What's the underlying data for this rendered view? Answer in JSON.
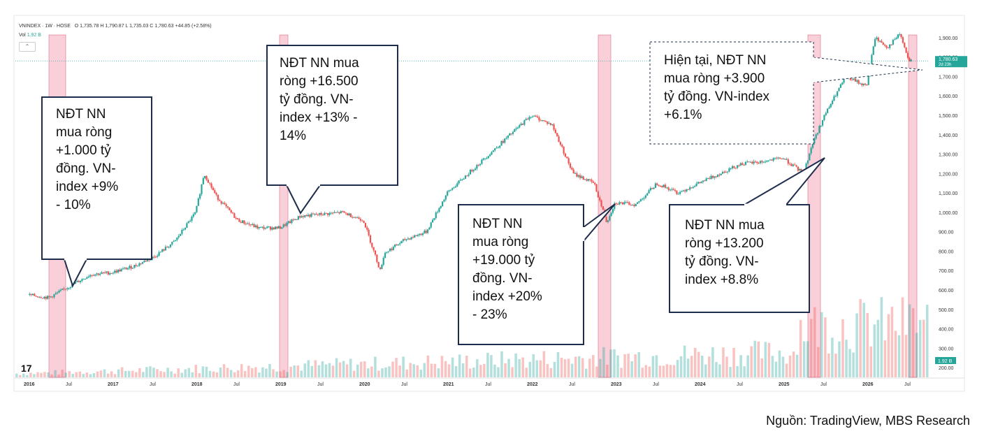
{
  "header": {
    "symbol": "VNINDEX · 1W · HOSE",
    "ohlc": "O 1,735.78  H 1,790.87  L 1,735.03  C 1,780.63  +44.85 (+2.58%)",
    "vol_label": "Vol",
    "vol_value": "1.92 B"
  },
  "source": "Nguồn: TradingView, MBS Research",
  "colors": {
    "up": "#26a69a",
    "down": "#ef5350",
    "highlight": "#f4a7b9",
    "callout_border": "#1f2d4d"
  },
  "callouts": [
    {
      "text": "NĐT NN\nmua ròng\n+1.000 tỷ\nđồng. VN-\nindex +9%\n- 10%"
    },
    {
      "text": "NĐT NN mua\nròng +16.500\ntỷ đồng. VN-\nindex +13% -\n14%"
    },
    {
      "text": "NĐT NN\nmua ròng\n+19.000 tỷ\nđồng. VN-\nindex +20%\n- 23%"
    },
    {
      "text": "NĐT NN mua\nròng +13.200\ntỷ đồng. VN-\nindex +8.8%"
    },
    {
      "text": "Hiện tại, NĐT NN\nmua ròng +3.900\ntỷ đồng. VN-index\n+6.1%"
    }
  ],
  "chart_data": {
    "type": "line",
    "title": "VNINDEX · 1W · HOSE",
    "x_tick_labels": [
      "2016",
      "Jul",
      "2017",
      "Jul",
      "2018",
      "Jul",
      "2019",
      "Jul",
      "2020",
      "Jul",
      "2021",
      "Jul",
      "2022",
      "Jul",
      "2023",
      "Jul",
      "2024",
      "Jul",
      "2025",
      "Jul",
      "2026",
      "Jul"
    ],
    "y_tick_labels": [
      "1,900.00",
      "1,800.00",
      "1,700.00",
      "1,600.00",
      "1,500.00",
      "1,400.00",
      "1,300.00",
      "1,200.00",
      "1,100.00",
      "1,000.00",
      "900.00",
      "800.00",
      "700.00",
      "600.00",
      "500.00",
      "400.00",
      "300.00",
      "200.00"
    ],
    "ylim": [
      150,
      1950
    ],
    "last_price_label": "1,780.63",
    "last_price_sub": "2d 23h",
    "volume_label": "1.92 B",
    "series": [
      {
        "x": [
          2016.0,
          2016.25,
          2016.5,
          2016.75,
          2017.0,
          2017.25,
          2017.5,
          2017.75,
          2018.0,
          2018.1,
          2018.25,
          2018.5,
          2018.75,
          2019.0,
          2019.25,
          2019.5,
          2019.75,
          2020.0,
          2020.2,
          2020.25,
          2020.5,
          2020.75,
          2021.0,
          2021.25,
          2021.5,
          2021.75,
          2022.0,
          2022.25,
          2022.5,
          2022.75,
          2022.9,
          2023.0,
          2023.25,
          2023.5,
          2023.75,
          2024.0,
          2024.25,
          2024.5,
          2024.75,
          2025.0,
          2025.25,
          2025.35,
          2025.5,
          2025.75,
          2026.0,
          2026.1,
          2026.25,
          2026.4,
          2026.5,
          2026.55
        ],
        "y": [
          575,
          560,
          620,
          680,
          690,
          720,
          770,
          850,
          1000,
          1200,
          1080,
          960,
          920,
          920,
          980,
          990,
          1000,
          960,
          700,
          790,
          860,
          900,
          1100,
          1200,
          1300,
          1400,
          1500,
          1450,
          1200,
          1150,
          950,
          1050,
          1040,
          1150,
          1100,
          1150,
          1200,
          1250,
          1260,
          1280,
          1200,
          1350,
          1500,
          1700,
          1650,
          1900,
          1850,
          1920,
          1780,
          1780
        ]
      }
    ],
    "highlight_periods": [
      {
        "start": 2016.25,
        "end": 2016.45
      },
      {
        "start": 2019.0,
        "end": 2019.1
      },
      {
        "start": 2022.8,
        "end": 2022.95
      },
      {
        "start": 2025.3,
        "end": 2025.45
      },
      {
        "start": 2026.5,
        "end": 2026.6
      }
    ]
  }
}
